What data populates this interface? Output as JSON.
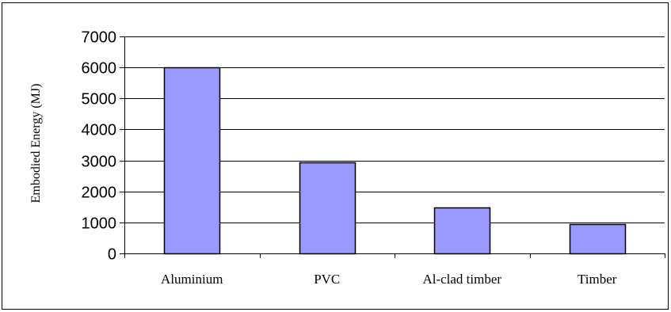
{
  "chart_data": {
    "type": "bar",
    "categories": [
      "Aluminium",
      "PVC",
      "Al-clad timber",
      "Timber"
    ],
    "values": [
      6000,
      2950,
      1470,
      950
    ],
    "title": "",
    "xlabel": "",
    "ylabel": "Embodied Energy (MJ)",
    "ylim": [
      0,
      7000
    ],
    "yticks": [
      0,
      1000,
      2000,
      3000,
      4000,
      5000,
      6000,
      7000
    ],
    "grid": true,
    "legend": "none",
    "colors": {
      "bar_fill": "#9999ff",
      "bar_stroke": "#000000",
      "grid": "#000000"
    }
  }
}
